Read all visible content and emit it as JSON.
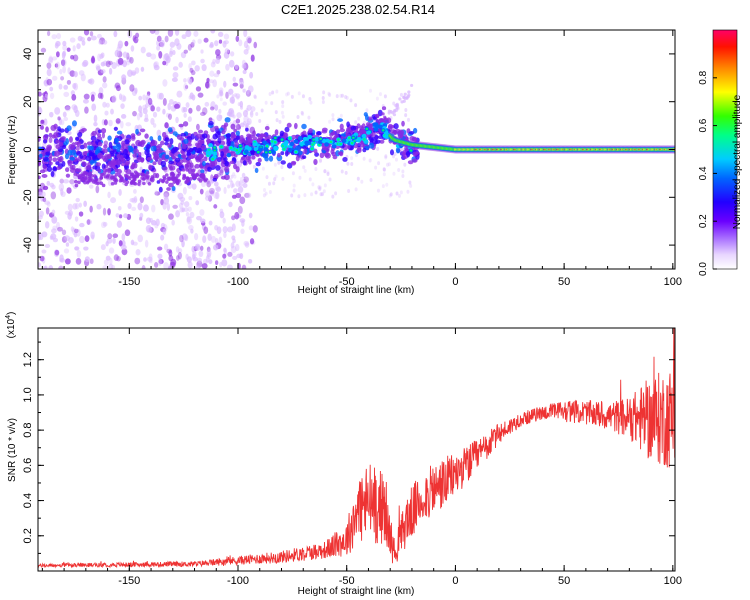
{
  "title": "C2E1.2025.238.02.54.R14",
  "chart_data": [
    {
      "type": "heatmap",
      "xlabel": "Height of straight line (km)",
      "ylabel": "Frequency (Hz)",
      "xlim": [
        -192,
        101
      ],
      "ylim": [
        -50,
        50
      ],
      "xticks": [
        -150,
        -100,
        -50,
        0,
        50,
        100
      ],
      "xtick_labels": [
        "-150",
        "-100",
        "-50",
        "0",
        "50",
        "100"
      ],
      "yticks": [
        -40,
        -20,
        0,
        20,
        40
      ],
      "ytick_labels": [
        "-40",
        "-20",
        "0",
        "20",
        "40"
      ],
      "colorbar": {
        "label": "Normalized spectral amplitude",
        "range": [
          0,
          1
        ],
        "ticks": [
          0.0,
          0.2,
          0.4,
          0.6,
          0.8
        ],
        "tick_labels": [
          "0.0",
          "0.2",
          "0.4",
          "0.6",
          "0.8"
        ],
        "colors": [
          "#ffffff",
          "#d9b8ff",
          "#8a2be2",
          "#3300ff",
          "#0066ff",
          "#00ccff",
          "#00ff66",
          "#66ff00",
          "#ffff00",
          "#ff9900",
          "#ff2200",
          "#ff0066"
        ]
      },
      "ridge": {
        "description_points_x": [
          -120,
          -100,
          -80,
          -60,
          -45,
          -35,
          -28,
          -20,
          0,
          50,
          100
        ],
        "description_points_y": [
          -2,
          0,
          2,
          3,
          4,
          10,
          4,
          2,
          0,
          0,
          0
        ]
      }
    },
    {
      "type": "line",
      "xlabel": "Height of straight line (km)",
      "ylabel": "SNR (10 * v/v)",
      "y_multiplier_label": "(x10",
      "y_multiplier_exp": "4",
      "y_multiplier_close": ")",
      "xlim": [
        -192,
        101
      ],
      "ylim": [
        0,
        1.38
      ],
      "xticks": [
        -150,
        -100,
        -50,
        0,
        50,
        100
      ],
      "xtick_labels": [
        "-150",
        "-100",
        "-50",
        "0",
        "50",
        "100"
      ],
      "yticks": [
        0.2,
        0.4,
        0.6,
        0.8,
        1.0,
        1.2
      ],
      "ytick_labels": [
        "0.2",
        "0.4",
        "0.6",
        "0.8",
        "1.0",
        "1.2"
      ],
      "color": "#ee3333",
      "envelope": {
        "x": [
          -192,
          -160,
          -120,
          -100,
          -80,
          -60,
          -50,
          -45,
          -38,
          -33,
          -28,
          -22,
          -15,
          -5,
          0,
          10,
          20,
          30,
          40,
          50,
          60,
          70,
          80,
          90,
          100
        ],
        "y": [
          0.03,
          0.035,
          0.04,
          0.06,
          0.08,
          0.12,
          0.18,
          0.35,
          0.4,
          0.35,
          0.1,
          0.3,
          0.42,
          0.5,
          0.55,
          0.65,
          0.78,
          0.86,
          0.9,
          0.91,
          0.9,
          0.88,
          0.87,
          0.86,
          0.87
        ],
        "amp": [
          0.01,
          0.012,
          0.015,
          0.025,
          0.035,
          0.05,
          0.1,
          0.2,
          0.25,
          0.2,
          0.08,
          0.15,
          0.15,
          0.15,
          0.12,
          0.1,
          0.06,
          0.04,
          0.04,
          0.06,
          0.07,
          0.08,
          0.12,
          0.25,
          0.3
        ]
      }
    }
  ]
}
